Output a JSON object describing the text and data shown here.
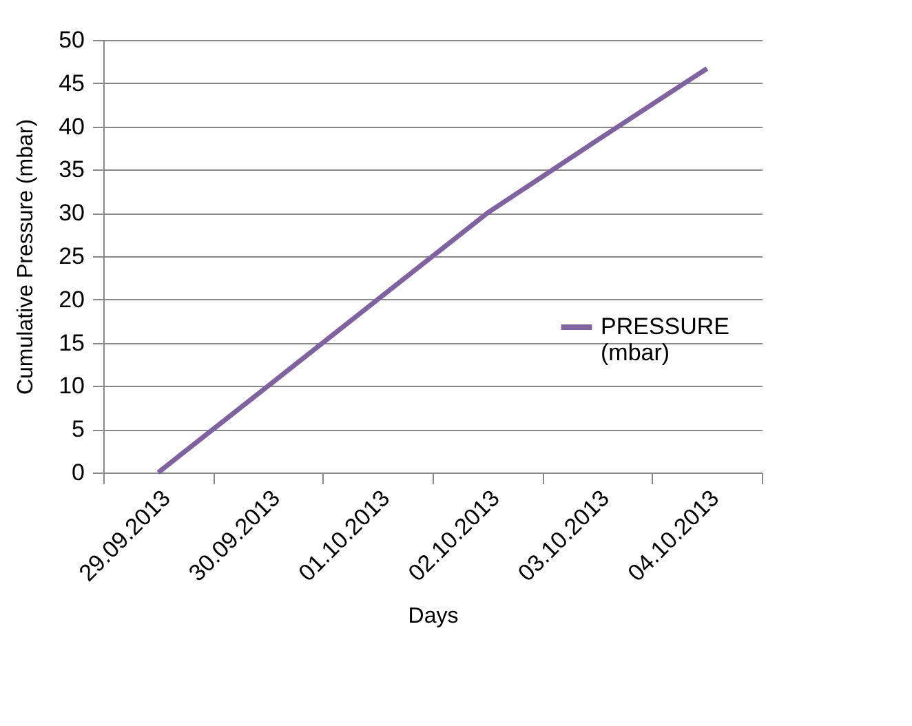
{
  "chart_data": {
    "type": "line",
    "xlabel": "Days",
    "ylabel": "Cumulative Pressure (mbar)",
    "categories": [
      "29.09.2013",
      "30.09.2013",
      "01.10.2013",
      "02.10.2013",
      "03.10.2013",
      "04.10.2013"
    ],
    "series": [
      {
        "name": "PRESSURE (mbar)",
        "color": "#7f63a1",
        "values": [
          0,
          10,
          20,
          30,
          38.4,
          46.7
        ]
      }
    ],
    "ylim": [
      0,
      50
    ],
    "yticks": [
      0,
      5,
      10,
      15,
      20,
      25,
      30,
      35,
      40,
      45,
      50
    ],
    "grid": "y",
    "legend": "right",
    "marker": "none",
    "line_style": "solid"
  }
}
